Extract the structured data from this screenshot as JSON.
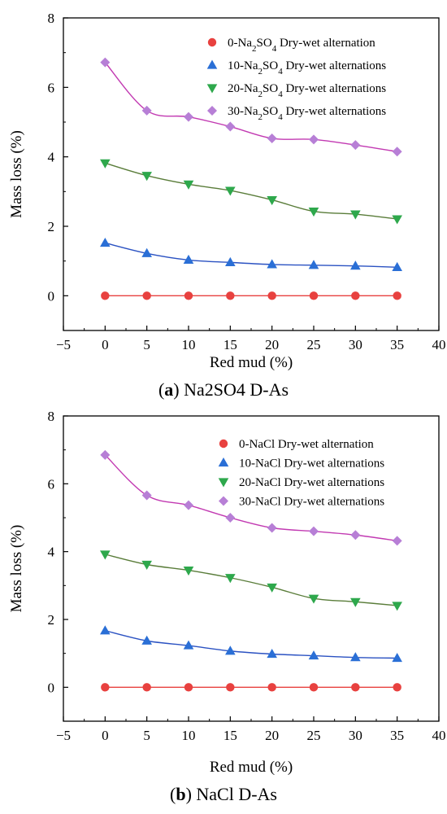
{
  "colors": {
    "s0": "#e8413f",
    "s10": "#2a6fd6",
    "s20": "#2ea84c",
    "s30": "#b77fd6",
    "fit0": "#e8413f",
    "fit10": "#2b52c2",
    "fit20": "#5a7d3a",
    "fit30": "#c23ab2"
  },
  "chart_data": [
    {
      "type": "scatter",
      "panel": "a",
      "caption_letter": "a",
      "caption_text": "Na2SO4 D-As",
      "xlabel": "Red mud (%)",
      "ylabel": "Mass loss (%)",
      "xlim": [
        -5,
        40
      ],
      "ylim": [
        -1,
        8
      ],
      "xticks": [
        -5,
        0,
        5,
        10,
        15,
        20,
        25,
        30,
        35,
        40
      ],
      "xtick_labels": [
        "−5",
        "0",
        "5",
        "10",
        "15",
        "20",
        "25",
        "30",
        "35",
        "40"
      ],
      "yticks": [
        0,
        2,
        4,
        6,
        8
      ],
      "ytick_labels": [
        "0",
        "2",
        "4",
        "6",
        "8"
      ],
      "legend_position": "top-right",
      "x": [
        0,
        5,
        10,
        15,
        20,
        25,
        30,
        35
      ],
      "series": [
        {
          "name": "0-Na2SO4 Dry-wet alternation",
          "legend_pre": "0-Na",
          "legend_sub1": "2",
          "legend_mid": "SO",
          "legend_sub2": "4",
          "legend_post": " Dry-wet alternation",
          "marker": "circle",
          "values": [
            0,
            0,
            0,
            0,
            0,
            0,
            0,
            0
          ]
        },
        {
          "name": "10-Na2SO4 Dry-wet alternations",
          "legend_pre": "10-Na",
          "legend_sub1": "2",
          "legend_mid": "SO",
          "legend_sub2": "4",
          "legend_post": " Dry-wet alternations",
          "marker": "triangle-up",
          "values": [
            1.52,
            1.22,
            1.03,
            0.96,
            0.9,
            0.88,
            0.86,
            0.82
          ]
        },
        {
          "name": "20-Na2SO4 Dry-wet alternations",
          "legend_pre": "20-Na",
          "legend_sub1": "2",
          "legend_mid": "SO",
          "legend_sub2": "4",
          "legend_post": " Dry-wet alternations",
          "marker": "triangle-down",
          "values": [
            3.82,
            3.46,
            3.21,
            3.03,
            2.76,
            2.43,
            2.35,
            2.21
          ]
        },
        {
          "name": "30-Na2SO4 Dry-wet alternations",
          "legend_pre": "30-Na",
          "legend_sub1": "2",
          "legend_mid": "SO",
          "legend_sub2": "4",
          "legend_post": " Dry-wet alternations",
          "marker": "diamond",
          "values": [
            6.72,
            5.33,
            5.15,
            4.87,
            4.53,
            4.5,
            4.34,
            4.15
          ]
        }
      ]
    },
    {
      "type": "scatter",
      "panel": "b",
      "caption_letter": "b",
      "caption_text": "NaCl D-As",
      "xlabel": "Red mud (%)",
      "ylabel": "Mass loss (%)",
      "xlim": [
        -5,
        40
      ],
      "ylim": [
        -1,
        8
      ],
      "xticks": [
        -5,
        0,
        5,
        10,
        15,
        20,
        25,
        30,
        35,
        40
      ],
      "xtick_labels": [
        "−5",
        "0",
        "5",
        "10",
        "15",
        "20",
        "25",
        "30",
        "35",
        "40"
      ],
      "yticks": [
        0,
        2,
        4,
        6,
        8
      ],
      "ytick_labels": [
        "0",
        "2",
        "4",
        "6",
        "8"
      ],
      "legend_position": "top-right",
      "x": [
        0,
        5,
        10,
        15,
        20,
        25,
        30,
        35
      ],
      "series": [
        {
          "name": "0-NaCl Dry-wet alternation",
          "legend_pre": "0-NaCl Dry-wet alternation",
          "marker": "circle",
          "values": [
            0,
            0,
            0,
            0,
            0,
            0,
            0,
            0
          ]
        },
        {
          "name": "10-NaCl Dry-wet alternations",
          "legend_pre": "10-NaCl Dry-wet alternations",
          "marker": "triangle-up",
          "values": [
            1.67,
            1.37,
            1.23,
            1.07,
            0.98,
            0.93,
            0.88,
            0.86
          ]
        },
        {
          "name": "20-NaCl Dry-wet alternations",
          "legend_pre": "20-NaCl Dry-wet alternations",
          "marker": "triangle-down",
          "values": [
            3.92,
            3.62,
            3.45,
            3.23,
            2.95,
            2.62,
            2.52,
            2.41
          ]
        },
        {
          "name": "30-NaCl Dry-wet alternations",
          "legend_pre": "30-NaCl Dry-wet alternations",
          "marker": "diamond",
          "values": [
            6.85,
            5.66,
            5.37,
            5.0,
            4.7,
            4.6,
            4.49,
            4.32
          ]
        }
      ]
    }
  ]
}
